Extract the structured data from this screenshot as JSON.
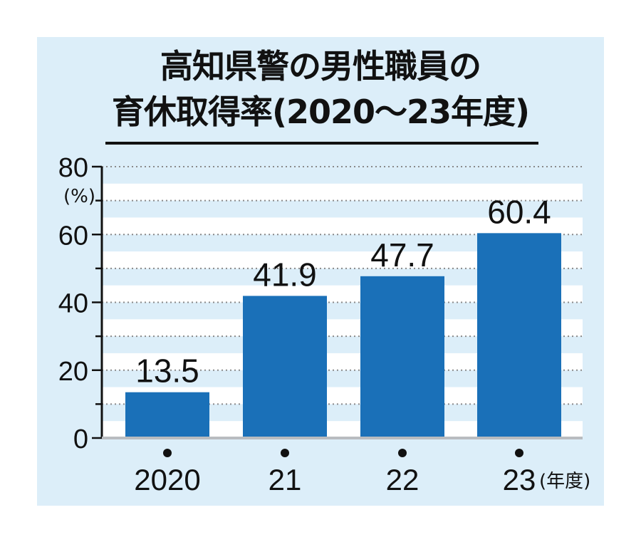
{
  "chart_data": {
    "type": "bar",
    "title_line1": "高知県警の男性職員の",
    "title_line2": "育休取得率(2020〜23年度)",
    "ylabel": "(%)",
    "x_unit": "(年度)",
    "categories": [
      "2020",
      "21",
      "22",
      "23"
    ],
    "values": [
      13.5,
      41.9,
      47.7,
      60.4
    ],
    "value_labels": [
      "13.5",
      "41.9",
      "47.7",
      "60.4"
    ],
    "ylim": [
      0,
      80
    ],
    "yticks": [
      "0",
      "20",
      "40",
      "60",
      "80"
    ],
    "grid": true,
    "bar_color": "#1a70b8",
    "background_color": "#dceef9",
    "grid_band_color": "#ffffff"
  }
}
